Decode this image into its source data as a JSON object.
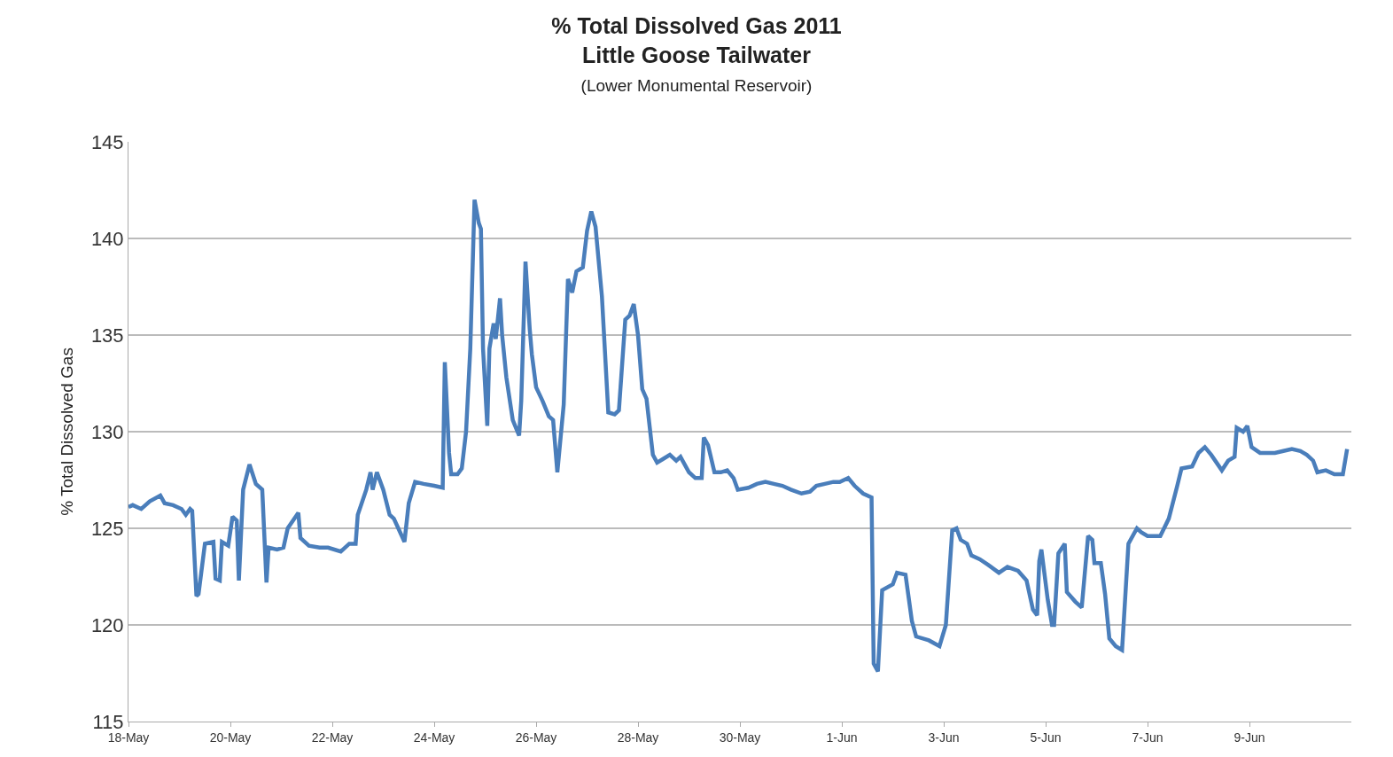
{
  "chart_data": {
    "type": "line",
    "title": "% Total Dissolved Gas 2011\nLittle Goose Tailwater",
    "subtitle": "(Lower Monumental Reservoir)",
    "ylabel": "% Total Dissolved Gas",
    "x": [
      "2011-05-18T00:00",
      "2011-05-18T02:00",
      "2011-05-18T06:00",
      "2011-05-18T10:00",
      "2011-05-18T15:00",
      "2011-05-18T17:00",
      "2011-05-18T21:00",
      "2011-05-19T01:00",
      "2011-05-19T03:00",
      "2011-05-19T05:00",
      "2011-05-19T06:00",
      "2011-05-19T08:00",
      "2011-05-19T09:00",
      "2011-05-19T12:00",
      "2011-05-19T16:00",
      "2011-05-19T17:00",
      "2011-05-19T19:00",
      "2011-05-19T20:00",
      "2011-05-19T23:00",
      "2011-05-20T01:00",
      "2011-05-20T03:00",
      "2011-05-20T04:00",
      "2011-05-20T06:00",
      "2011-05-20T09:00",
      "2011-05-20T12:00",
      "2011-05-20T15:00",
      "2011-05-20T17:00",
      "2011-05-20T18:00",
      "2011-05-20T22:00",
      "2011-05-21T01:00",
      "2011-05-21T03:00",
      "2011-05-21T08:00",
      "2011-05-21T09:00",
      "2011-05-21T13:00",
      "2011-05-21T18:00",
      "2011-05-21T22:00",
      "2011-05-22T04:00",
      "2011-05-22T08:00",
      "2011-05-22T11:00",
      "2011-05-22T12:00",
      "2011-05-22T16:00",
      "2011-05-22T18:00",
      "2011-05-22T19:00",
      "2011-05-22T21:00",
      "2011-05-23T00:00",
      "2011-05-23T03:00",
      "2011-05-23T05:00",
      "2011-05-23T10:00",
      "2011-05-23T12:00",
      "2011-05-23T15:00",
      "2011-05-23T19:00",
      "2011-05-24T00:00",
      "2011-05-24T04:00",
      "2011-05-24T05:00",
      "2011-05-24T07:00",
      "2011-05-24T08:00",
      "2011-05-24T11:00",
      "2011-05-24T13:00",
      "2011-05-24T15:00",
      "2011-05-24T17:00",
      "2011-05-24T19:00",
      "2011-05-24T21:00",
      "2011-05-24T22:00",
      "2011-05-24T23:00",
      "2011-05-25T01:00",
      "2011-05-25T02:00",
      "2011-05-25T04:00",
      "2011-05-25T05:00",
      "2011-05-25T07:00",
      "2011-05-25T08:00",
      "2011-05-25T10:00",
      "2011-05-25T13:00",
      "2011-05-25T16:00",
      "2011-05-25T17:00",
      "2011-05-25T19:00",
      "2011-05-25T21:00",
      "2011-05-25T22:00",
      "2011-05-26T00:00",
      "2011-05-26T03:00",
      "2011-05-26T06:00",
      "2011-05-26T08:00",
      "2011-05-26T10:00",
      "2011-05-26T13:00",
      "2011-05-26T15:00",
      "2011-05-26T17:00",
      "2011-05-26T19:00",
      "2011-05-26T22:00",
      "2011-05-27T00:00",
      "2011-05-27T02:00",
      "2011-05-27T04:00",
      "2011-05-27T07:00",
      "2011-05-27T10:00",
      "2011-05-27T13:00",
      "2011-05-27T15:00",
      "2011-05-27T18:00",
      "2011-05-27T20:00",
      "2011-05-27T22:00",
      "2011-05-28T00:00",
      "2011-05-28T02:00",
      "2011-05-28T04:00",
      "2011-05-28T07:00",
      "2011-05-28T09:00",
      "2011-05-28T12:00",
      "2011-05-28T15:00",
      "2011-05-28T18:00",
      "2011-05-28T20:00",
      "2011-05-29T00:00",
      "2011-05-29T03:00",
      "2011-05-29T06:00",
      "2011-05-29T07:00",
      "2011-05-29T09:00",
      "2011-05-29T12:00",
      "2011-05-29T15:00",
      "2011-05-29T18:00",
      "2011-05-29T21:00",
      "2011-05-29T23:00",
      "2011-05-30T04:00",
      "2011-05-30T08:00",
      "2011-05-30T12:00",
      "2011-05-30T16:00",
      "2011-05-30T20:00",
      "2011-05-31T00:00",
      "2011-05-31T05:00",
      "2011-05-31T09:00",
      "2011-05-31T12:00",
      "2011-05-31T16:00",
      "2011-05-31T20:00",
      "2011-05-31T23:00",
      "2011-06-01T03:00",
      "2011-06-01T06:00",
      "2011-06-01T10:00",
      "2011-06-01T14:00",
      "2011-06-01T15:00",
      "2011-06-01T17:00",
      "2011-06-01T19:00",
      "2011-06-02T00:00",
      "2011-06-02T02:00",
      "2011-06-02T06:00",
      "2011-06-02T09:00",
      "2011-06-02T11:00",
      "2011-06-02T17:00",
      "2011-06-02T22:00",
      "2011-06-03T01:00",
      "2011-06-03T04:00",
      "2011-06-03T06:00",
      "2011-06-03T08:00",
      "2011-06-03T11:00",
      "2011-06-03T13:00",
      "2011-06-03T17:00",
      "2011-06-03T21:00",
      "2011-06-04T02:00",
      "2011-06-04T06:00",
      "2011-06-04T11:00",
      "2011-06-04T15:00",
      "2011-06-04T18:00",
      "2011-06-04T20:00",
      "2011-06-04T21:00",
      "2011-06-04T22:00",
      "2011-06-05T01:00",
      "2011-06-05T03:00",
      "2011-06-05T04:00",
      "2011-06-05T06:00",
      "2011-06-05T09:00",
      "2011-06-05T10:00",
      "2011-06-05T14:00",
      "2011-06-05T17:00",
      "2011-06-05T20:00",
      "2011-06-05T22:00",
      "2011-06-05T23:00",
      "2011-06-06T02:00",
      "2011-06-06T04:00",
      "2011-06-06T06:00",
      "2011-06-06T09:00",
      "2011-06-06T12:00",
      "2011-06-06T15:00",
      "2011-06-06T19:00",
      "2011-06-06T21:00",
      "2011-06-07T00:00",
      "2011-06-07T03:00",
      "2011-06-07T06:00",
      "2011-06-07T10:00",
      "2011-06-07T14:00",
      "2011-06-07T16:00",
      "2011-06-07T21:00",
      "2011-06-08T00:00",
      "2011-06-08T03:00",
      "2011-06-08T06:00",
      "2011-06-08T11:00",
      "2011-06-08T14:00",
      "2011-06-08T17:00",
      "2011-06-08T18:00",
      "2011-06-08T21:00",
      "2011-06-08T23:00",
      "2011-06-09T01:00",
      "2011-06-09T05:00",
      "2011-06-09T12:00",
      "2011-06-09T16:00",
      "2011-06-09T20:00",
      "2011-06-10T00:00",
      "2011-06-10T03:00",
      "2011-06-10T06:00",
      "2011-06-10T08:00",
      "2011-06-10T12:00",
      "2011-06-10T16:00",
      "2011-06-10T20:00",
      "2011-06-10T22:00"
    ],
    "series": [
      {
        "color": "#4a7ebb",
        "values": [
          126.1,
          126.2,
          126.0,
          126.4,
          126.7,
          126.3,
          126.2,
          126.0,
          125.7,
          126.0,
          125.9,
          121.5,
          121.6,
          124.2,
          124.3,
          122.4,
          122.3,
          124.3,
          124.1,
          125.6,
          125.4,
          122.3,
          127.0,
          128.3,
          127.3,
          127.0,
          122.2,
          124.0,
          123.9,
          124.0,
          125.0,
          125.8,
          124.5,
          124.1,
          124.0,
          124.0,
          123.8,
          124.2,
          124.2,
          125.7,
          127.0,
          127.9,
          127.0,
          127.9,
          127.0,
          125.7,
          125.5,
          124.3,
          126.3,
          127.4,
          127.3,
          127.2,
          127.1,
          133.6,
          128.9,
          127.8,
          127.8,
          128.1,
          130.0,
          134.3,
          142.0,
          140.8,
          140.5,
          134.3,
          130.3,
          134.3,
          135.6,
          134.8,
          136.9,
          135.0,
          132.8,
          130.6,
          129.8,
          131.6,
          138.8,
          135.3,
          134.0,
          132.3,
          131.6,
          130.8,
          130.6,
          127.9,
          131.4,
          137.9,
          137.2,
          138.3,
          138.5,
          140.4,
          141.4,
          140.6,
          137.0,
          131.0,
          130.9,
          131.1,
          135.8,
          136.0,
          136.6,
          135.0,
          132.2,
          131.7,
          128.8,
          128.4,
          128.6,
          128.8,
          128.5,
          128.7,
          127.9,
          127.6,
          127.6,
          129.7,
          129.3,
          127.9,
          127.9,
          128.0,
          127.6,
          127.0,
          127.1,
          127.3,
          127.4,
          127.3,
          127.2,
          127.0,
          126.8,
          126.9,
          127.2,
          127.3,
          127.4,
          127.4,
          127.6,
          127.2,
          126.8,
          126.6,
          118.0,
          117.6,
          121.8,
          122.1,
          122.7,
          122.6,
          120.2,
          119.4,
          119.2,
          118.9,
          120.0,
          124.9,
          125.0,
          124.4,
          124.2,
          123.6,
          123.4,
          123.1,
          122.7,
          123.0,
          122.8,
          122.3,
          120.8,
          120.5,
          123.3,
          123.9,
          121.3,
          120.0,
          120.0,
          123.7,
          124.2,
          121.7,
          121.2,
          120.9,
          124.6,
          124.4,
          123.2,
          123.2,
          121.6,
          119.3,
          118.9,
          118.7,
          124.2,
          125.0,
          124.8,
          124.6,
          124.6,
          124.6,
          125.5,
          127.2,
          128.1,
          128.2,
          128.9,
          129.2,
          128.8,
          128.0,
          128.5,
          128.7,
          130.2,
          130.0,
          130.3,
          129.2,
          128.9,
          128.9,
          129.0,
          129.1,
          129.0,
          128.8,
          128.5,
          127.9,
          128.0,
          127.8,
          127.8,
          129.1
        ]
      }
    ],
    "xlim": [
      "2011-05-18",
      "2011-06-11"
    ],
    "xticks": [
      {
        "value": "2011-05-18",
        "label": "18-May"
      },
      {
        "value": "2011-05-20",
        "label": "20-May"
      },
      {
        "value": "2011-05-22",
        "label": "22-May"
      },
      {
        "value": "2011-05-24",
        "label": "24-May"
      },
      {
        "value": "2011-05-26",
        "label": "26-May"
      },
      {
        "value": "2011-05-28",
        "label": "28-May"
      },
      {
        "value": "2011-05-30",
        "label": "30-May"
      },
      {
        "value": "2011-06-01",
        "label": "1-Jun"
      },
      {
        "value": "2011-06-03",
        "label": "3-Jun"
      },
      {
        "value": "2011-06-05",
        "label": "5-Jun"
      },
      {
        "value": "2011-06-07",
        "label": "7-Jun"
      },
      {
        "value": "2011-06-09",
        "label": "9-Jun"
      }
    ],
    "ylim": [
      115,
      145
    ],
    "yticks": [
      115,
      120,
      125,
      130,
      135,
      140,
      145
    ],
    "grid": "y",
    "marker": "none",
    "line_style": "solid"
  }
}
